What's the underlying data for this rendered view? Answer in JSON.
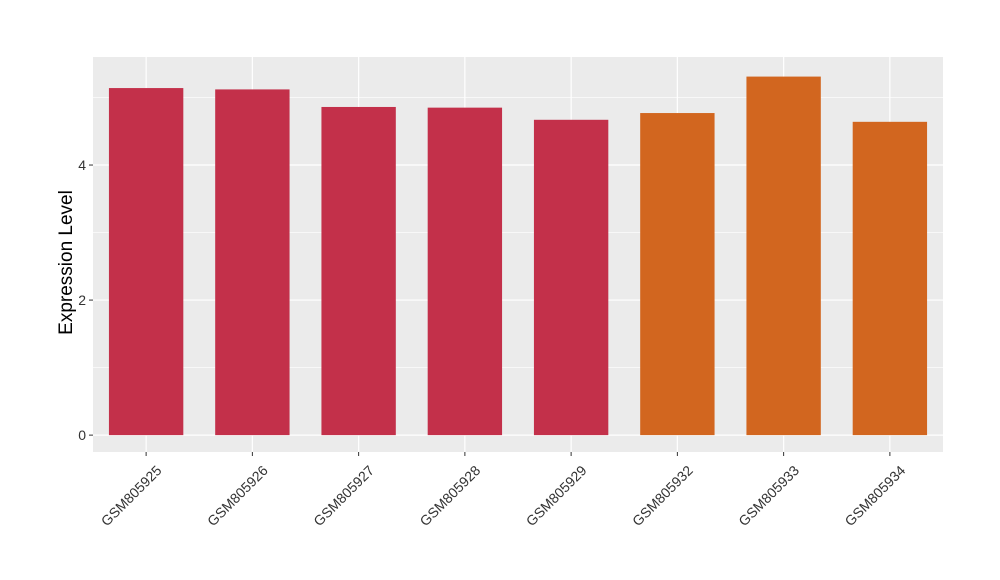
{
  "chart_data": {
    "type": "bar",
    "title": "",
    "xlabel": "",
    "ylabel": "Expression Level",
    "categories": [
      "GSM805925",
      "GSM805926",
      "GSM805927",
      "GSM805928",
      "GSM805929",
      "GSM805932",
      "GSM805933",
      "GSM805934"
    ],
    "values": [
      5.14,
      5.12,
      4.86,
      4.85,
      4.67,
      4.77,
      5.31,
      4.64
    ],
    "bar_colors": [
      "#c3304a",
      "#c3304a",
      "#c3304a",
      "#c3304a",
      "#c3304a",
      "#d2661f",
      "#d2661f",
      "#d2661f"
    ],
    "ylim": [
      -0.25,
      5.6
    ],
    "y_ticks": [
      0,
      2,
      4
    ],
    "y_tick_labels": [
      "0",
      "2",
      "4"
    ],
    "grid": true,
    "legend": "none",
    "panel_background": "#ebebeb",
    "grid_color": "#ffffff"
  }
}
